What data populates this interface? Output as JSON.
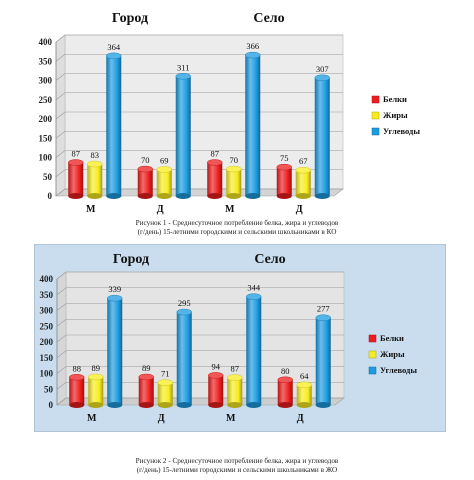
{
  "chart_data": [
    {
      "type": "bar",
      "style": "3d-cylinder",
      "background": "#ffffff",
      "group_titles": [
        "Город",
        "Село"
      ],
      "categories": [
        "М",
        "Д",
        "М",
        "Д"
      ],
      "series": [
        {
          "name": "Белки",
          "color": "#ee1c1c",
          "values": [
            87,
            70,
            87,
            75
          ]
        },
        {
          "name": "Жиры",
          "color": "#f7ec1f",
          "values": [
            83,
            69,
            70,
            67
          ]
        },
        {
          "name": "Углеводы",
          "color": "#1b9be0",
          "values": [
            364,
            311,
            366,
            307
          ]
        }
      ],
      "yticks": [
        "0",
        "50",
        "100",
        "150",
        "200",
        "250",
        "300",
        "350",
        "400"
      ],
      "ylim": [
        0,
        400
      ],
      "legend": "right",
      "caption_lines": [
        "Рисунок 1 - Среднесуточное потребление белка, жира и углеводов",
        "(г/день) 15-летними городскими и сельскими школьниками в КО"
      ]
    },
    {
      "type": "bar",
      "style": "3d-cylinder",
      "background": "#c9ddee",
      "group_titles": [
        "Город",
        "Село"
      ],
      "categories": [
        "М",
        "Д",
        "М",
        "Д"
      ],
      "series": [
        {
          "name": "Белки",
          "color": "#ee1c1c",
          "values": [
            88,
            89,
            94,
            80
          ]
        },
        {
          "name": "Жиры",
          "color": "#f7ec1f",
          "values": [
            89,
            71,
            87,
            64
          ]
        },
        {
          "name": "Углеводы",
          "color": "#1b9be0",
          "values": [
            339,
            295,
            344,
            277
          ]
        }
      ],
      "yticks": [
        "0",
        "50",
        "100",
        "150",
        "200",
        "250",
        "300",
        "350",
        "400"
      ],
      "ylim": [
        0,
        400
      ],
      "legend": "right",
      "caption_lines": [
        "Рисунок 2 - Среднесуточное потребление белка, жира и углеводов",
        "(г/день) 15-летними городскими и сельскими школьниками в ЖО"
      ]
    }
  ]
}
